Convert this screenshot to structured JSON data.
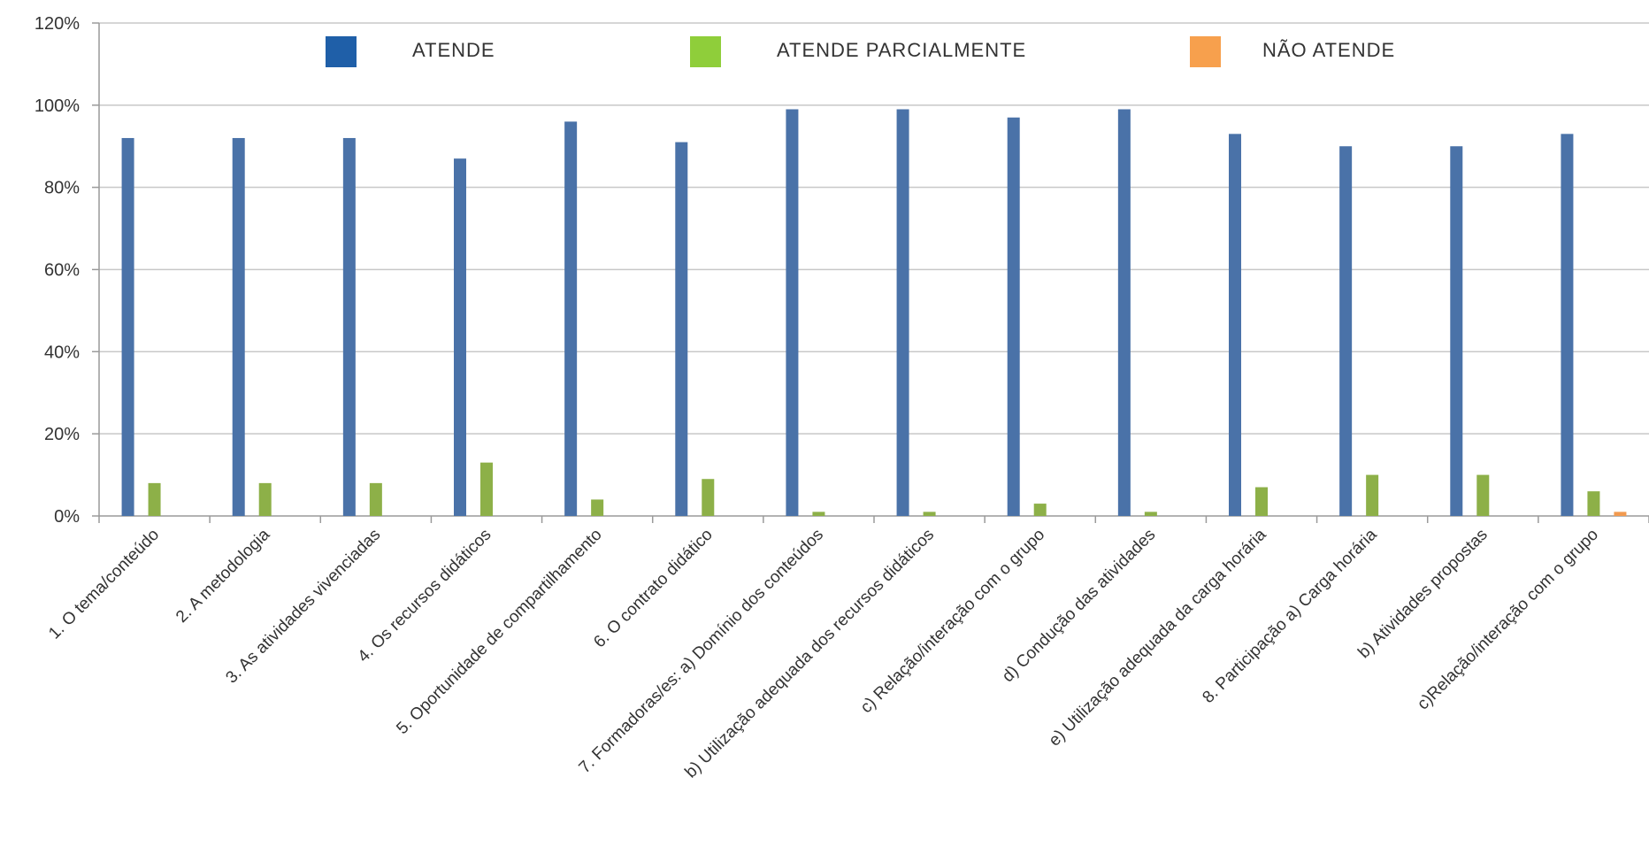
{
  "chart_data": {
    "type": "bar",
    "categories": [
      "1. O tema/conteúdo",
      "2. A metodologia",
      "3. As atividades vivenciadas",
      "4. Os recursos didáticos",
      "5. Oportunidade de compartilhamento",
      "6. O contrato didático",
      "7. Formadoras/es:  a) Domínio dos conteúdos",
      "b) Utilização adequada dos recursos didáticos",
      "c) Relação/interação com o grupo",
      "d) Condução das atividades",
      "e) Utilização adequada da carga horária",
      "8. Participação a) Carga horária",
      "b) Atividades propostas",
      "c)Relação/interação com o grupo"
    ],
    "series": [
      {
        "name": "ATENDE",
        "color": "#4a72a8",
        "values": [
          92,
          92,
          92,
          87,
          96,
          91,
          99,
          99,
          97,
          99,
          93,
          90,
          90,
          93
        ]
      },
      {
        "name": "ATENDE PARCIALMENTE",
        "color": "#8db048",
        "values": [
          8,
          8,
          8,
          13,
          4,
          9,
          1,
          1,
          3,
          1,
          7,
          10,
          10,
          6
        ]
      },
      {
        "name": "NÃO ATENDE",
        "color": "#f29a4f",
        "values": [
          0,
          0,
          0,
          0,
          0,
          0,
          0,
          0,
          0,
          0,
          0,
          0,
          0,
          1
        ]
      }
    ],
    "legend_colors": [
      "#1f5fa8",
      "#8fce3a",
      "#f7a04d"
    ],
    "yticks": [
      "0%",
      "20%",
      "40%",
      "60%",
      "80%",
      "100%",
      "120%"
    ],
    "ylim": [
      0,
      120
    ],
    "grid": true,
    "legend_position": "top"
  }
}
